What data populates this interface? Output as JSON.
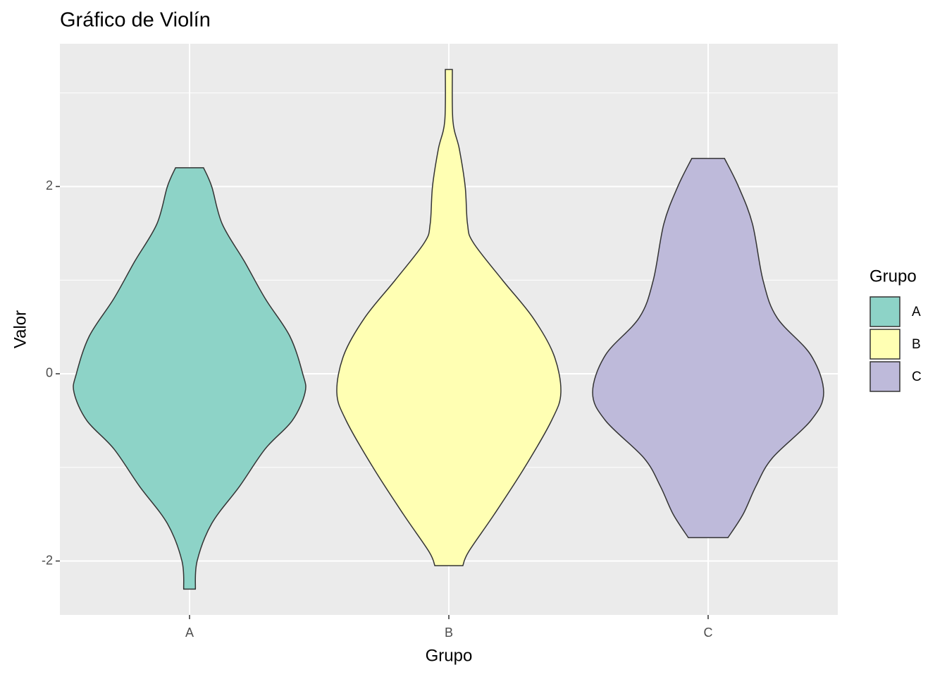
{
  "chart_data": {
    "type": "violin",
    "title": "Gráfico de Violín",
    "x_label": "Grupo",
    "y_label": "Valor",
    "categories": [
      "A",
      "B",
      "C"
    ],
    "series": [
      {
        "name": "A",
        "color": "#8dd3c7",
        "y": [
          2.2,
          2.0,
          1.6,
          1.2,
          0.8,
          0.4,
          0.0,
          -0.2,
          -0.5,
          -0.8,
          -1.2,
          -1.6,
          -2.0,
          -2.3
        ],
        "width": [
          0.12,
          0.19,
          0.28,
          0.47,
          0.65,
          0.86,
          0.97,
          0.99,
          0.88,
          0.65,
          0.43,
          0.19,
          0.065,
          0.05
        ]
      },
      {
        "name": "B",
        "color": "#ffffb3",
        "y": [
          3.25,
          2.7,
          2.4,
          2.0,
          1.6,
          1.4,
          1.0,
          0.6,
          0.2,
          -0.2,
          -0.5,
          -1.0,
          -1.5,
          -1.9,
          -2.05
        ],
        "width": [
          0.03,
          0.035,
          0.09,
          0.14,
          0.16,
          0.21,
          0.46,
          0.72,
          0.9,
          0.96,
          0.88,
          0.65,
          0.39,
          0.17,
          0.12
        ]
      },
      {
        "name": "C",
        "color": "#bebada",
        "y": [
          2.3,
          2.0,
          1.6,
          1.0,
          0.6,
          0.2,
          -0.2,
          -0.5,
          -0.9,
          -1.2,
          -1.5,
          -1.75
        ],
        "width": [
          0.14,
          0.26,
          0.38,
          0.47,
          0.59,
          0.88,
          0.99,
          0.88,
          0.55,
          0.41,
          0.3,
          0.17
        ]
      }
    ],
    "ylim": [
      -2.576,
      3.525
    ],
    "yticks": [
      -2,
      0,
      2
    ],
    "minor_yticks": [
      -1,
      1,
      3
    ],
    "grid": true,
    "legend": {
      "title": "Grupo",
      "position": "right"
    }
  }
}
